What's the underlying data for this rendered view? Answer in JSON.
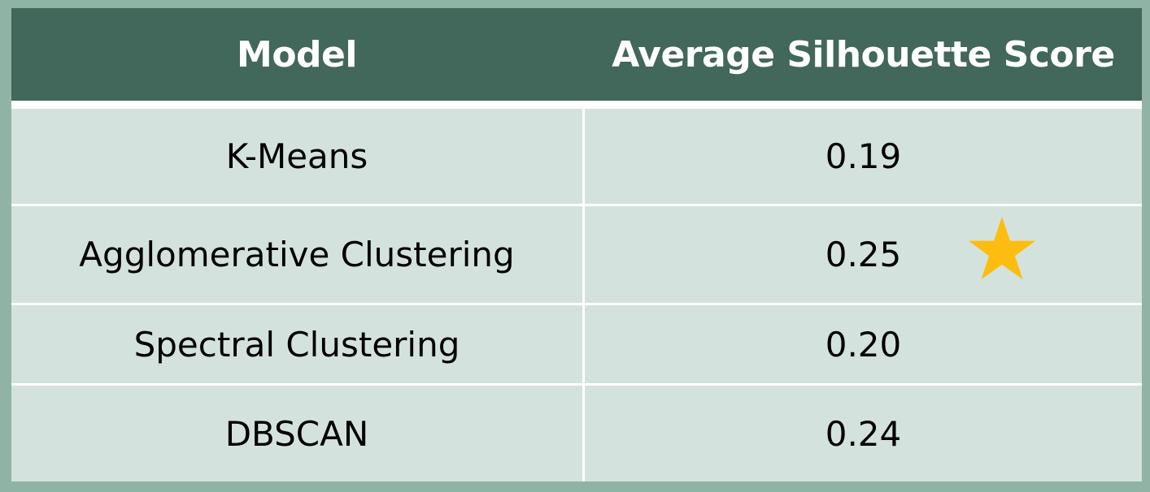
{
  "table": {
    "headers": [
      "Model",
      "Average Silhouette Score"
    ],
    "rows": [
      {
        "model": "K-Means",
        "score": "0.19"
      },
      {
        "model": "Agglomerative Clustering",
        "score": "0.25"
      },
      {
        "model": "Spectral Clustering",
        "score": "0.20"
      },
      {
        "model": "DBSCAN",
        "score": "0.24"
      }
    ],
    "highlight_icon": "star-icon",
    "highlight_row": 1
  },
  "colors": {
    "header_bg": "#42675b",
    "row_bg": "#d4e2de",
    "frame_bg": "#8fb4a5",
    "star": "#fdbd10"
  }
}
